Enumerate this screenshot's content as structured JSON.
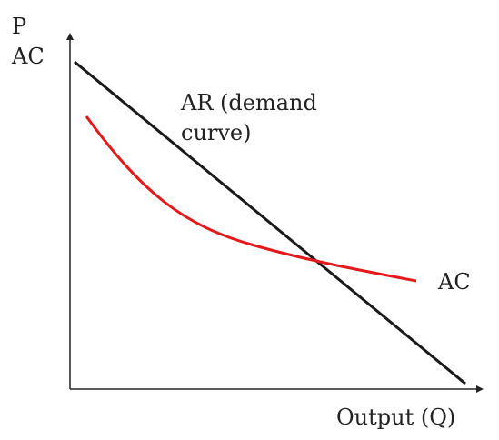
{
  "diagram": {
    "y_axis_label_line1": "P",
    "y_axis_label_line2": "AC",
    "x_axis_label": "Output (Q)",
    "ar_label_line1": "AR (demand",
    "ar_label_line2": "curve)",
    "ac_label": "AC",
    "colors": {
      "axis": "#222222",
      "ar_line": "#1a1a1a",
      "ac_curve": "#e3191b",
      "text": "#222222"
    }
  }
}
